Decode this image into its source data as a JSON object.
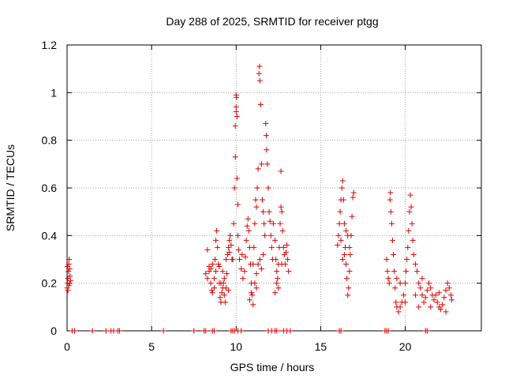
{
  "chart_data": {
    "type": "scatter",
    "title": "Day 288 of 2025, SRMTID for receiver ptgg",
    "xlabel": "GPS time / hours",
    "ylabel": "SRMTID / TECUs",
    "xlim": [
      0,
      24.5
    ],
    "ylim": [
      0,
      1.2
    ],
    "x_ticks": [
      0,
      5,
      10,
      15,
      20
    ],
    "x_tick_labels": [
      "0",
      "5",
      "10",
      "15",
      "20"
    ],
    "y_ticks": [
      0,
      0.2,
      0.4,
      0.6,
      0.8,
      1.0,
      1.2
    ],
    "y_tick_labels": [
      "0",
      "0.2",
      "0.4",
      "0.6",
      "0.8",
      "1",
      "1.2"
    ],
    "grid": true,
    "series": [
      {
        "name": "SRMTID",
        "marker": "plus",
        "color": "#e00000",
        "points": [
          [
            0.0,
            0.18
          ],
          [
            0.02,
            0.2
          ],
          [
            0.05,
            0.22
          ],
          [
            0.08,
            0.25
          ],
          [
            0.1,
            0.28
          ],
          [
            0.12,
            0.3
          ],
          [
            0.15,
            0.26
          ],
          [
            0.17,
            0.23
          ],
          [
            0.2,
            0.21
          ],
          [
            0.05,
            0.17
          ],
          [
            0.1,
            0.19
          ],
          [
            0.15,
            0.2
          ],
          [
            0.03,
            0.27
          ],
          [
            0.3,
            0.0
          ],
          [
            0.45,
            0.0
          ],
          [
            1.5,
            0.0
          ],
          [
            2.3,
            0.0
          ],
          [
            2.6,
            0.0
          ],
          [
            2.75,
            0.0
          ],
          [
            3.0,
            0.0
          ],
          [
            3.1,
            0.0
          ],
          [
            5.7,
            0.0
          ],
          [
            7.5,
            0.0
          ],
          [
            8.1,
            0.0
          ],
          [
            8.2,
            0.0
          ],
          [
            8.2,
            0.24
          ],
          [
            8.3,
            0.22
          ],
          [
            8.4,
            0.25
          ],
          [
            8.5,
            0.2
          ],
          [
            8.55,
            0.17
          ],
          [
            8.6,
            0.16
          ],
          [
            8.7,
            0.22
          ],
          [
            8.75,
            0.3
          ],
          [
            8.8,
            0.38
          ],
          [
            8.85,
            0.42
          ],
          [
            8.9,
            0.35
          ],
          [
            8.95,
            0.28
          ],
          [
            9.0,
            0.2
          ],
          [
            9.05,
            0.14
          ],
          [
            9.1,
            0.12
          ],
          [
            9.15,
            0.16
          ],
          [
            9.2,
            0.18
          ],
          [
            9.25,
            0.2
          ],
          [
            9.3,
            0.15
          ],
          [
            9.35,
            0.12
          ],
          [
            9.4,
            0.18
          ],
          [
            9.45,
            0.24
          ],
          [
            9.5,
            0.32
          ],
          [
            9.55,
            0.35
          ],
          [
            9.6,
            0.38
          ],
          [
            9.65,
            0.4
          ],
          [
            9.7,
            0.36
          ],
          [
            9.75,
            0.3
          ],
          [
            8.6,
            0.28
          ],
          [
            8.5,
            0.26
          ],
          [
            8.4,
            0.27
          ],
          [
            8.3,
            0.34
          ],
          [
            9.0,
            0.27
          ],
          [
            9.2,
            0.25
          ],
          [
            9.4,
            0.3
          ],
          [
            9.6,
            0.33
          ],
          [
            8.8,
            0.25
          ],
          [
            9.1,
            0.2
          ],
          [
            9.3,
            0.22
          ],
          [
            8.7,
            0.18
          ],
          [
            9.55,
            0.17
          ],
          [
            8.6,
            0.0
          ],
          [
            8.7,
            0.0
          ],
          [
            9.7,
            0.0
          ],
          [
            9.8,
            0.0
          ],
          [
            9.9,
            0.0
          ],
          [
            10.1,
            0.0
          ],
          [
            10.3,
            0.0
          ],
          [
            9.8,
            0.3
          ],
          [
            9.85,
            0.45
          ],
          [
            9.9,
            0.6
          ],
          [
            9.95,
            0.73
          ],
          [
            9.95,
            0.86
          ],
          [
            10.0,
            0.92
          ],
          [
            10.0,
            0.94
          ],
          [
            10.02,
            0.98
          ],
          [
            10.0,
            0.99
          ],
          [
            10.05,
            0.9
          ],
          [
            10.05,
            0.64
          ],
          [
            10.1,
            0.53
          ],
          [
            10.1,
            0.4
          ],
          [
            10.15,
            0.34
          ],
          [
            10.2,
            0.3
          ],
          [
            10.3,
            0.26
          ],
          [
            10.35,
            0.32
          ],
          [
            10.4,
            0.22
          ],
          [
            10.5,
            0.25
          ],
          [
            10.55,
            0.31
          ],
          [
            10.6,
            0.38
          ],
          [
            10.65,
            0.44
          ],
          [
            10.7,
            0.47
          ],
          [
            10.75,
            0.42
          ],
          [
            10.8,
            0.35
          ],
          [
            10.85,
            0.28
          ],
          [
            10.9,
            0.2
          ],
          [
            10.95,
            0.15
          ],
          [
            11.0,
            0.11
          ],
          [
            10.8,
            0.13
          ],
          [
            10.9,
            0.16
          ],
          [
            11.0,
            0.28
          ],
          [
            11.05,
            0.35
          ],
          [
            11.1,
            0.45
          ],
          [
            11.15,
            0.55
          ],
          [
            11.2,
            0.52
          ],
          [
            11.25,
            0.6
          ],
          [
            11.3,
            0.68
          ],
          [
            11.35,
            1.08
          ],
          [
            11.38,
            1.11
          ],
          [
            11.4,
            1.05
          ],
          [
            11.45,
            0.95
          ],
          [
            11.5,
            0.7
          ],
          [
            11.55,
            0.55
          ],
          [
            11.6,
            0.5
          ],
          [
            11.65,
            0.45
          ],
          [
            11.7,
            0.4
          ],
          [
            11.75,
            0.87
          ],
          [
            11.78,
            0.82
          ],
          [
            11.8,
            0.76
          ],
          [
            11.85,
            0.7
          ],
          [
            11.9,
            0.6
          ],
          [
            11.95,
            0.5
          ],
          [
            12.0,
            0.46
          ],
          [
            12.05,
            0.4
          ],
          [
            12.1,
            0.35
          ],
          [
            12.15,
            0.3
          ],
          [
            11.2,
            0.24
          ],
          [
            11.3,
            0.28
          ],
          [
            11.4,
            0.3
          ],
          [
            11.5,
            0.26
          ],
          [
            11.6,
            0.32
          ],
          [
            11.1,
            0.2
          ],
          [
            11.2,
            0.18
          ],
          [
            11.9,
            0.0
          ],
          [
            12.1,
            0.0
          ],
          [
            12.3,
            0.0
          ],
          [
            12.4,
            0.0
          ],
          [
            12.8,
            0.0
          ],
          [
            13.0,
            0.0
          ],
          [
            13.2,
            0.0
          ],
          [
            12.2,
            0.45
          ],
          [
            12.3,
            0.38
          ],
          [
            12.35,
            0.3
          ],
          [
            12.4,
            0.25
          ],
          [
            12.45,
            0.22
          ],
          [
            12.5,
            0.28
          ],
          [
            12.55,
            0.35
          ],
          [
            12.6,
            0.45
          ],
          [
            12.65,
            0.52
          ],
          [
            12.7,
            0.5
          ],
          [
            12.75,
            0.42
          ],
          [
            12.8,
            0.35
          ],
          [
            12.85,
            0.32
          ],
          [
            12.9,
            0.28
          ],
          [
            12.95,
            0.33
          ],
          [
            13.0,
            0.36
          ],
          [
            13.05,
            0.3
          ],
          [
            13.1,
            0.25
          ],
          [
            12.65,
            0.67
          ],
          [
            12.4,
            0.2
          ],
          [
            12.5,
            0.18
          ],
          [
            12.7,
            0.28
          ],
          [
            12.3,
            0.16
          ],
          [
            16.1,
            0.0
          ],
          [
            16.2,
            0.0
          ],
          [
            16.0,
            0.36
          ],
          [
            16.05,
            0.4
          ],
          [
            16.1,
            0.45
          ],
          [
            16.15,
            0.5
          ],
          [
            16.2,
            0.55
          ],
          [
            16.25,
            0.6
          ],
          [
            16.3,
            0.63
          ],
          [
            16.35,
            0.55
          ],
          [
            16.4,
            0.45
          ],
          [
            16.45,
            0.35
          ],
          [
            16.5,
            0.28
          ],
          [
            16.55,
            0.22
          ],
          [
            16.6,
            0.15
          ],
          [
            16.65,
            0.18
          ],
          [
            16.7,
            0.25
          ],
          [
            16.75,
            0.32
          ],
          [
            16.8,
            0.4
          ],
          [
            16.85,
            0.48
          ],
          [
            16.9,
            0.56
          ],
          [
            16.95,
            0.58
          ],
          [
            16.3,
            0.3
          ],
          [
            16.4,
            0.32
          ],
          [
            16.2,
            0.38
          ],
          [
            16.6,
            0.4
          ],
          [
            16.7,
            0.35
          ],
          [
            16.5,
            0.42
          ],
          [
            18.8,
            0.0
          ],
          [
            18.9,
            0.0
          ],
          [
            19.0,
            0.0
          ],
          [
            21.2,
            0.0
          ],
          [
            21.3,
            0.0
          ],
          [
            18.9,
            0.3
          ],
          [
            18.95,
            0.25
          ],
          [
            19.0,
            0.22
          ],
          [
            19.05,
            0.2
          ],
          [
            19.1,
            0.55
          ],
          [
            19.12,
            0.58
          ],
          [
            19.15,
            0.5
          ],
          [
            19.2,
            0.45
          ],
          [
            19.25,
            0.38
          ],
          [
            19.3,
            0.32
          ],
          [
            19.35,
            0.25
          ],
          [
            19.4,
            0.18
          ],
          [
            19.45,
            0.12
          ],
          [
            19.5,
            0.1
          ],
          [
            19.6,
            0.08
          ],
          [
            19.7,
            0.1
          ],
          [
            19.8,
            0.12
          ],
          [
            19.9,
            0.15
          ],
          [
            20.0,
            0.2
          ],
          [
            20.05,
            0.25
          ],
          [
            20.1,
            0.3
          ],
          [
            20.15,
            0.35
          ],
          [
            20.2,
            0.42
          ],
          [
            20.25,
            0.5
          ],
          [
            20.3,
            0.57
          ],
          [
            20.35,
            0.52
          ],
          [
            20.4,
            0.45
          ],
          [
            20.45,
            0.38
          ],
          [
            20.5,
            0.32
          ],
          [
            20.6,
            0.28
          ],
          [
            20.7,
            0.25
          ],
          [
            20.8,
            0.2
          ],
          [
            20.9,
            0.18
          ],
          [
            21.0,
            0.15
          ],
          [
            21.1,
            0.12
          ],
          [
            21.2,
            0.14
          ],
          [
            21.3,
            0.17
          ],
          [
            21.4,
            0.2
          ],
          [
            21.5,
            0.18
          ],
          [
            21.6,
            0.15
          ],
          [
            21.7,
            0.13
          ],
          [
            21.8,
            0.15
          ],
          [
            21.9,
            0.12
          ],
          [
            22.0,
            0.1
          ],
          [
            22.1,
            0.09
          ],
          [
            22.2,
            0.11
          ],
          [
            22.3,
            0.14
          ],
          [
            22.4,
            0.17
          ],
          [
            22.5,
            0.2
          ],
          [
            22.6,
            0.18
          ],
          [
            22.7,
            0.15
          ],
          [
            22.75,
            0.13
          ],
          [
            19.5,
            0.22
          ],
          [
            19.7,
            0.2
          ],
          [
            20.0,
            0.12
          ],
          [
            20.6,
            0.15
          ],
          [
            20.8,
            0.1
          ],
          [
            21.0,
            0.22
          ],
          [
            21.5,
            0.1
          ],
          [
            22.0,
            0.16
          ],
          [
            22.4,
            0.08
          ]
        ]
      }
    ]
  }
}
